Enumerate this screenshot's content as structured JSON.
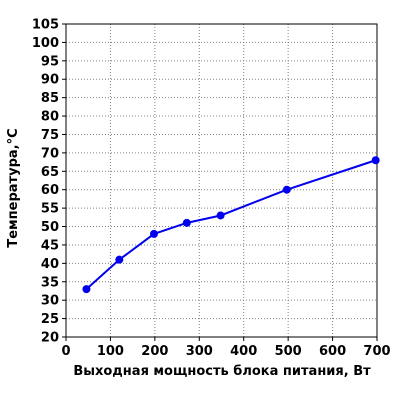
{
  "chart_data": {
    "type": "line",
    "title": "",
    "xlabel": "Выходная мощность блока питания, Вт",
    "ylabel": "Температура,°C",
    "xlim": [
      0,
      700
    ],
    "ylim": [
      20,
      105
    ],
    "x_ticks": [
      0,
      100,
      200,
      300,
      400,
      500,
      600,
      700
    ],
    "y_ticks": [
      20,
      25,
      30,
      35,
      40,
      45,
      50,
      55,
      60,
      65,
      70,
      75,
      80,
      85,
      90,
      95,
      100,
      105
    ],
    "grid": true,
    "grid_style": "dotted",
    "legend": "none",
    "colors": {
      "series": "#0000ee",
      "grid": "#808080",
      "axis": "#000000"
    },
    "series": [
      {
        "x": [
          46,
          120,
          198,
          272,
          348,
          497,
          697
        ],
        "values": [
          33,
          41,
          48,
          51,
          53,
          60,
          68
        ]
      }
    ]
  }
}
